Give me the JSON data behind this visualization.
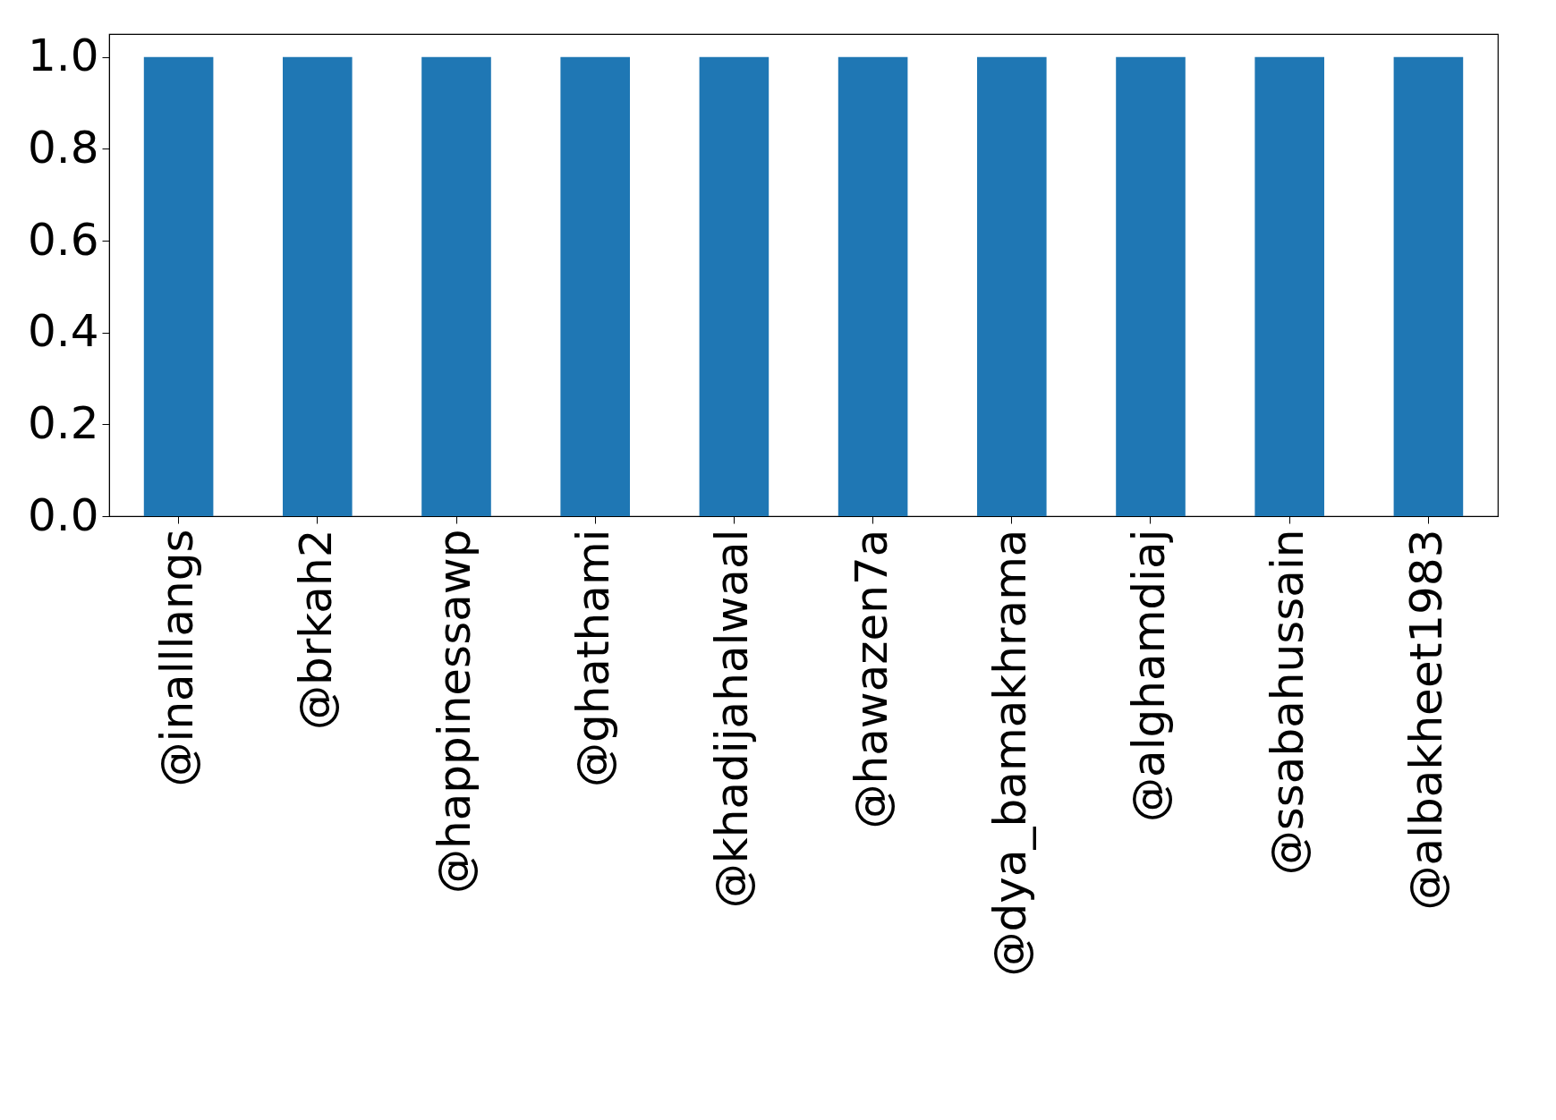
{
  "chart_data": {
    "type": "bar",
    "categories": [
      "@inalllangs",
      "@brkah2",
      "@happinessawp",
      "@ghathami",
      "@khadijahalwaal",
      "@hawazen7a",
      "@dya_bamakhrama",
      "@alghamdiaj",
      "@ssabahussain",
      "@albakheet1983"
    ],
    "values": [
      1,
      1,
      1,
      1,
      1,
      1,
      1,
      1,
      1,
      1
    ],
    "color": "#1f77b4",
    "ylim": [
      0,
      1.05
    ],
    "yticks": [
      {
        "value": 0,
        "label": "0.0"
      },
      0.2,
      0.4,
      0.6,
      0.8,
      {
        "value": 1,
        "label": "1.0"
      }
    ],
    "grid": false
  }
}
